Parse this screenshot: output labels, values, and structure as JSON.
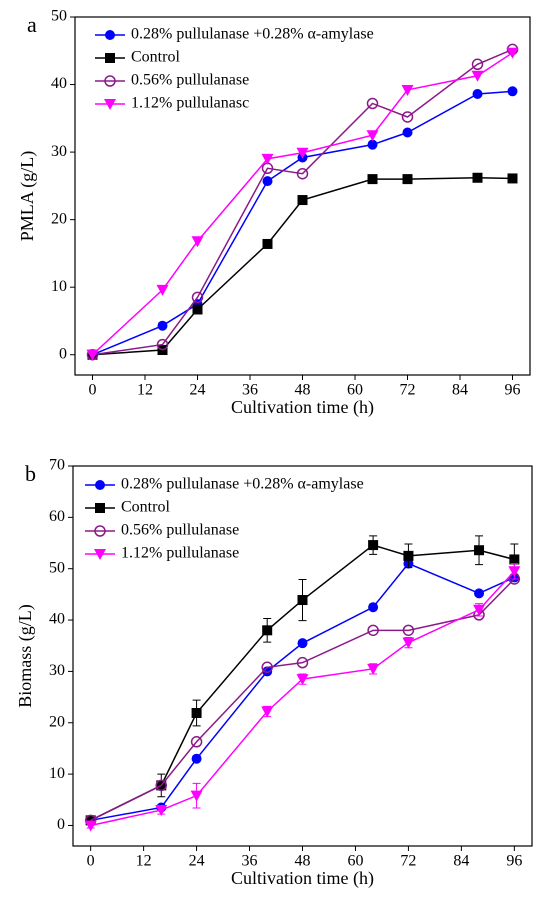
{
  "chart_data": [
    {
      "type": "line",
      "panel": "a",
      "x_label": "Cultivation time (h)",
      "y_label": "PMLA (g/L)",
      "x": [
        0,
        16,
        24,
        40,
        48,
        64,
        72,
        88,
        96
      ],
      "xlim": [
        -4,
        100
      ],
      "xticks": [
        0,
        12,
        24,
        36,
        48,
        60,
        72,
        84,
        96
      ],
      "ylim": [
        -3,
        50
      ],
      "yticks": [
        0,
        10,
        20,
        30,
        40,
        50
      ],
      "legend": "upper-left",
      "series": [
        {
          "name": "0.28% pullulanase +0.28% α-amylase",
          "color": "#0000ff",
          "marker": "circle",
          "values": [
            0,
            4.3,
            7.5,
            25.7,
            29.2,
            31.1,
            32.9,
            38.6,
            39
          ]
        },
        {
          "name": "Control",
          "color": "#000000",
          "marker": "square",
          "values": [
            0,
            0.7,
            6.7,
            16.4,
            22.9,
            26,
            26,
            26.2,
            26.1
          ]
        },
        {
          "name": "0.56% pullulanase",
          "color": "#8b1a89",
          "marker": "open-circle",
          "values": [
            0,
            1.5,
            8.5,
            27.6,
            26.8,
            37.2,
            35.2,
            43,
            45.2
          ]
        },
        {
          "name": "1.12% pullulanasc",
          "color": "#ff00ff",
          "marker": "triangle-down",
          "values": [
            0,
            9.6,
            16.8,
            29,
            29.9,
            32.5,
            39.2,
            41.3,
            44.7
          ]
        }
      ]
    },
    {
      "type": "line",
      "panel": "b",
      "x_label": "Cultivation time (h)",
      "y_label": "Biomass (g/L)",
      "x": [
        0,
        16,
        24,
        40,
        48,
        64,
        72,
        88,
        96
      ],
      "xlim": [
        -4,
        100
      ],
      "xticks": [
        0,
        12,
        24,
        36,
        48,
        60,
        72,
        84,
        96
      ],
      "ylim": [
        -4,
        70
      ],
      "yticks": [
        0,
        10,
        20,
        30,
        40,
        50,
        60,
        70
      ],
      "legend": "upper-left",
      "series": [
        {
          "name": "0.28% pullulanase +0.28% α-amylase",
          "color": "#0000ff",
          "marker": "circle",
          "values": [
            1,
            3.5,
            13,
            30,
            35.5,
            42.5,
            51,
            45.2,
            48.3
          ]
        },
        {
          "name": "Control",
          "color": "#000000",
          "marker": "square",
          "values": [
            1,
            7.8,
            21.9,
            38,
            43.9,
            54.6,
            52.5,
            53.6,
            51.8
          ],
          "errors": [
            0.5,
            2.2,
            2.5,
            2.3,
            4,
            1.8,
            2.3,
            2.8,
            3
          ]
        },
        {
          "name": "0.56% pullulanase",
          "color": "#8b1a89",
          "marker": "open-circle",
          "values": [
            1,
            7.8,
            16.3,
            30.8,
            31.7,
            38,
            38,
            41,
            48
          ]
        },
        {
          "name": "1.12% pullulanase",
          "color": "#ff00ff",
          "marker": "triangle-down",
          "values": [
            0,
            3,
            5.8,
            22.2,
            28.5,
            30.5,
            35.6,
            42,
            49.5
          ],
          "errors": [
            0.5,
            0.8,
            2.4,
            1,
            1,
            1,
            1,
            1.2,
            1.5
          ]
        }
      ]
    }
  ]
}
